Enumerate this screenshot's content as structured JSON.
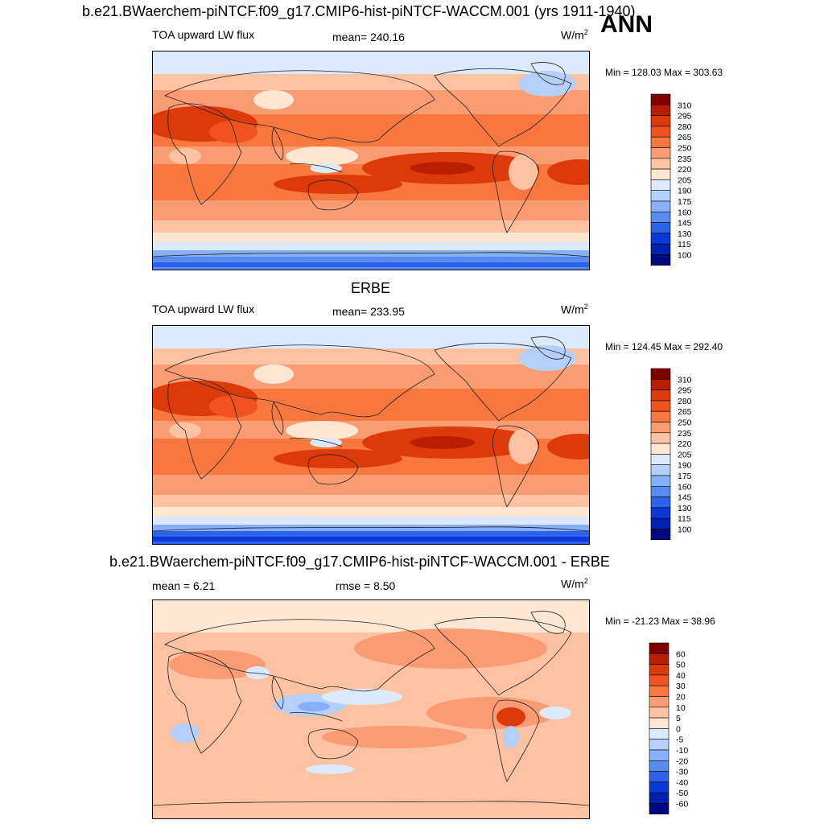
{
  "header": {
    "title": "b.e21.BWaerchem-piNTCF.f09_g17.CMIP6-hist-piNTCF-WACCM.001 (yrs 1911-1940)",
    "season": "ANN"
  },
  "panels": [
    {
      "id": "model",
      "title": "",
      "left_label": "TOA upward LW flux",
      "center_label": "mean= 240.16",
      "units_base": "W/m",
      "units_exp": "2",
      "minmax": "Min = 128.03 Max = 303.63",
      "colorbar": {
        "labels": [
          "310",
          "295",
          "280",
          "265",
          "250",
          "235",
          "220",
          "205",
          "190",
          "175",
          "160",
          "145",
          "130",
          "115",
          "100"
        ],
        "colors": [
          "#7f0000",
          "#b81f00",
          "#dd3a0a",
          "#f0531f",
          "#f7773f",
          "#fa9c73",
          "#fcc2a2",
          "#fde7d3",
          "#dbe9fb",
          "#b4cffa",
          "#86b0f7",
          "#5a8bf2",
          "#2d62ea",
          "#0c38d9",
          "#0020b0",
          "#000a80"
        ]
      }
    },
    {
      "id": "obs",
      "title": "ERBE",
      "left_label": "TOA upward LW flux",
      "center_label": "mean= 233.95",
      "units_base": "W/m",
      "units_exp": "2",
      "minmax": "Min = 124.45 Max = 292.40",
      "colorbar": {
        "labels": [
          "310",
          "295",
          "280",
          "265",
          "250",
          "235",
          "220",
          "205",
          "190",
          "175",
          "160",
          "145",
          "130",
          "115",
          "100"
        ],
        "colors": [
          "#7f0000",
          "#b81f00",
          "#dd3a0a",
          "#f0531f",
          "#f7773f",
          "#fa9c73",
          "#fcc2a2",
          "#fde7d3",
          "#dbe9fb",
          "#b4cffa",
          "#86b0f7",
          "#5a8bf2",
          "#2d62ea",
          "#0c38d9",
          "#0020b0",
          "#000a80"
        ]
      }
    },
    {
      "id": "diff",
      "title": "b.e21.BWaerchem-piNTCF.f09_g17.CMIP6-hist-piNTCF-WACCM.001 - ERBE",
      "left_label": "mean =   6.21",
      "center_label": "rmse =   8.50",
      "units_base": "W/m",
      "units_exp": "2",
      "minmax": "Min = -21.23 Max =  38.96",
      "colorbar": {
        "labels": [
          "60",
          "50",
          "40",
          "30",
          "20",
          "10",
          "5",
          "0",
          "-5",
          "-10",
          "-20",
          "-30",
          "-40",
          "-50",
          "-60"
        ],
        "colors": [
          "#7f0000",
          "#b81f00",
          "#dd3a0a",
          "#f0531f",
          "#f7773f",
          "#fa9c73",
          "#fcc2a2",
          "#fde7d3",
          "#dbe9fb",
          "#b4cffa",
          "#86b0f7",
          "#5a8bf2",
          "#2d62ea",
          "#0c38d9",
          "#0020b0",
          "#000a80"
        ]
      }
    }
  ],
  "chart_data": {
    "type": "heatmap",
    "panels": [
      {
        "name": "b.e21.BWaerchem-piNTCF.f09_g17.CMIP6-hist-piNTCF-WACCM.001",
        "variable": "TOA upward LW flux",
        "mean": 240.16,
        "min": 128.03,
        "max": 303.63,
        "units": "W/m2",
        "levels": [
          100,
          115,
          130,
          145,
          160,
          175,
          190,
          205,
          220,
          235,
          250,
          265,
          280,
          295,
          310
        ]
      },
      {
        "name": "ERBE",
        "variable": "TOA upward LW flux",
        "mean": 233.95,
        "min": 124.45,
        "max": 292.4,
        "units": "W/m2",
        "levels": [
          100,
          115,
          130,
          145,
          160,
          175,
          190,
          205,
          220,
          235,
          250,
          265,
          280,
          295,
          310
        ]
      },
      {
        "name": "b.e21.BWaerchem-piNTCF.f09_g17.CMIP6-hist-piNTCF-WACCM.001 - ERBE",
        "mean": 6.21,
        "rmse": 8.5,
        "min": -21.23,
        "max": 38.96,
        "units": "W/m2",
        "levels": [
          -60,
          -50,
          -40,
          -30,
          -20,
          -10,
          -5,
          0,
          5,
          10,
          20,
          30,
          40,
          50,
          60
        ]
      }
    ]
  }
}
